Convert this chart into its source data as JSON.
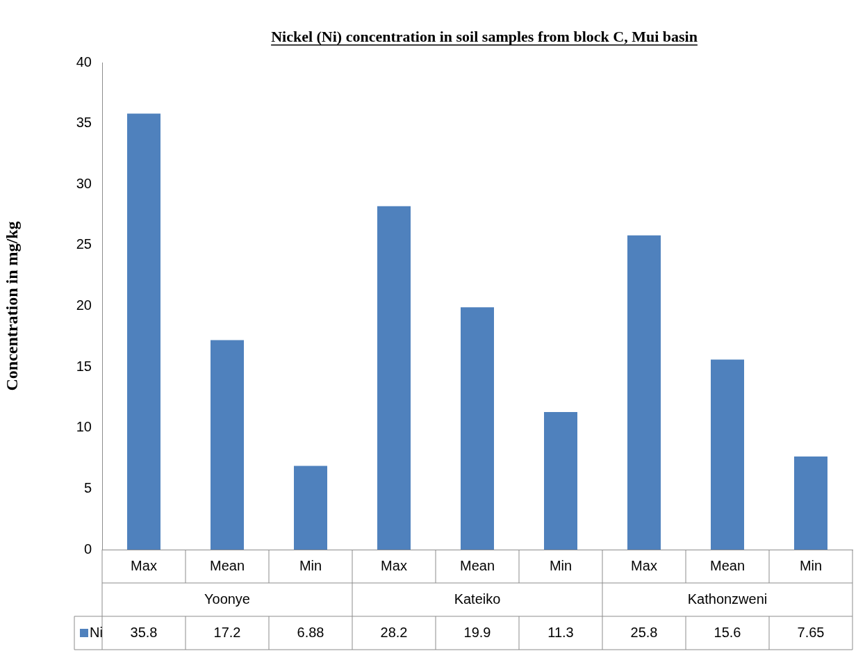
{
  "chart_data": {
    "type": "bar",
    "title": "Nickel (Ni) concentration in soil samples from block C, Mui basin",
    "ylabel": "Concentration in mg/kg",
    "categories": [
      "Max",
      "Mean",
      "Min",
      "Max",
      "Mean",
      "Min",
      "Max",
      "Mean",
      "Min"
    ],
    "annotations": [
      "Yoonye",
      "Kateiko",
      "Kathonzweni"
    ],
    "series": [
      {
        "name": "Ni",
        "color": "#4f81bd",
        "values": [
          35.8,
          17.2,
          6.88,
          28.2,
          19.9,
          11.3,
          25.8,
          15.6,
          7.65
        ]
      }
    ],
    "ylim": [
      0,
      40
    ],
    "yticks": [
      0,
      5,
      10,
      15,
      20,
      25,
      30,
      35,
      40
    ],
    "grid": false,
    "legend": "bottom",
    "data_labels": true
  }
}
